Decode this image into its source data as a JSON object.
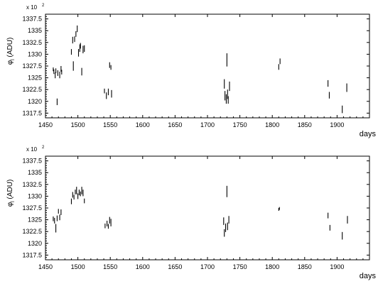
{
  "chart_data": [
    {
      "type": "scatter",
      "title": "",
      "multiplier_label": "x 10",
      "multiplier_exponent": "2",
      "ylabel_symbol": "φ",
      "ylabel_sub": "l",
      "ylabel_unit": " (ADU)",
      "xlabel": "days",
      "xlim": [
        1450,
        1950
      ],
      "ylim": [
        1316.5,
        1338.5
      ],
      "xticks": [
        1450,
        1500,
        1550,
        1600,
        1650,
        1700,
        1750,
        1800,
        1850,
        1900
      ],
      "xtick_labels": [
        "1450",
        "1500",
        "1550",
        "1600",
        "1650",
        "1700",
        "1750",
        "1800",
        "1850",
        "1900"
      ],
      "yticks": [
        1317.5,
        1320,
        1322.5,
        1325,
        1327.5,
        1330,
        1332.5,
        1335,
        1337.5
      ],
      "ytick_labels": [
        "1317.5",
        "1320",
        "1322.5",
        "1325",
        "1327.5",
        "1330",
        "1332.5",
        "1335",
        "1337.5"
      ],
      "grid": false,
      "series": [
        {
          "points": [
            {
              "x": 1462,
              "y": 1326.8,
              "err": 0.4
            },
            {
              "x": 1463,
              "y": 1326.3,
              "err": 0.5
            },
            {
              "x": 1465,
              "y": 1325.5,
              "err": 0.6
            },
            {
              "x": 1466,
              "y": 1326.5,
              "err": 0.5
            },
            {
              "x": 1468,
              "y": 1319.9,
              "err": 0.7
            },
            {
              "x": 1469,
              "y": 1326.0,
              "err": 0.6
            },
            {
              "x": 1472,
              "y": 1325.6,
              "err": 0.7
            },
            {
              "x": 1474,
              "y": 1326.9,
              "err": 0.6
            },
            {
              "x": 1475,
              "y": 1326.2,
              "err": 0.5
            },
            {
              "x": 1490,
              "y": 1330.5,
              "err": 0.6
            },
            {
              "x": 1492,
              "y": 1333.0,
              "err": 0.7
            },
            {
              "x": 1493,
              "y": 1327.5,
              "err": 1.0
            },
            {
              "x": 1495,
              "y": 1333.2,
              "err": 0.6
            },
            {
              "x": 1497,
              "y": 1334.3,
              "err": 0.6
            },
            {
              "x": 1499,
              "y": 1335.4,
              "err": 0.7
            },
            {
              "x": 1501,
              "y": 1330.3,
              "err": 0.8
            },
            {
              "x": 1503,
              "y": 1331.3,
              "err": 0.8
            },
            {
              "x": 1504,
              "y": 1331.8,
              "err": 0.6
            },
            {
              "x": 1506,
              "y": 1326.3,
              "err": 0.8
            },
            {
              "x": 1508,
              "y": 1331.0,
              "err": 0.8
            },
            {
              "x": 1510,
              "y": 1331.2,
              "err": 0.7
            },
            {
              "x": 1541,
              "y": 1322.2,
              "err": 0.5
            },
            {
              "x": 1544,
              "y": 1321.2,
              "err": 0.7
            },
            {
              "x": 1547,
              "y": 1322.0,
              "err": 0.7
            },
            {
              "x": 1549,
              "y": 1327.7,
              "err": 0.6
            },
            {
              "x": 1551,
              "y": 1327.2,
              "err": 0.5
            },
            {
              "x": 1552,
              "y": 1321.6,
              "err": 0.8
            },
            {
              "x": 1726,
              "y": 1323.7,
              "err": 1.0
            },
            {
              "x": 1727,
              "y": 1321.2,
              "err": 1.0
            },
            {
              "x": 1729,
              "y": 1320.5,
              "err": 1.0
            },
            {
              "x": 1730,
              "y": 1328.8,
              "err": 1.4
            },
            {
              "x": 1731,
              "y": 1321.5,
              "err": 1.0
            },
            {
              "x": 1732,
              "y": 1320.3,
              "err": 0.8
            },
            {
              "x": 1734,
              "y": 1323.2,
              "err": 1.0
            },
            {
              "x": 1810,
              "y": 1327.3,
              "err": 0.6
            },
            {
              "x": 1812,
              "y": 1328.5,
              "err": 0.6
            },
            {
              "x": 1886,
              "y": 1323.8,
              "err": 0.7
            },
            {
              "x": 1888,
              "y": 1321.3,
              "err": 0.7
            },
            {
              "x": 1908,
              "y": 1318.3,
              "err": 0.8
            },
            {
              "x": 1915,
              "y": 1322.9,
              "err": 0.9
            }
          ]
        }
      ]
    },
    {
      "type": "scatter",
      "title": "",
      "multiplier_label": "x 10",
      "multiplier_exponent": "2",
      "ylabel_symbol": "φ",
      "ylabel_sub": "l",
      "ylabel_unit": " (ADU)",
      "xlabel": "days",
      "xlim": [
        1450,
        1950
      ],
      "ylim": [
        1316.5,
        1338.5
      ],
      "xticks": [
        1450,
        1500,
        1550,
        1600,
        1650,
        1700,
        1750,
        1800,
        1850,
        1900
      ],
      "xtick_labels": [
        "1450",
        "1500",
        "1550",
        "1600",
        "1650",
        "1700",
        "1750",
        "1800",
        "1850",
        "1900"
      ],
      "yticks": [
        1317.5,
        1320,
        1322.5,
        1325,
        1327.5,
        1330,
        1332.5,
        1335,
        1337.5
      ],
      "ytick_labels": [
        "1317.5",
        "1320",
        "1322.5",
        "1325",
        "1327.5",
        "1330",
        "1332.5",
        "1335",
        "1337.5"
      ],
      "grid": false,
      "series": [
        {
          "points": [
            {
              "x": 1462,
              "y": 1325.2,
              "err": 0.5
            },
            {
              "x": 1464,
              "y": 1324.8,
              "err": 0.6
            },
            {
              "x": 1466,
              "y": 1323.2,
              "err": 0.9
            },
            {
              "x": 1468,
              "y": 1325.3,
              "err": 0.6
            },
            {
              "x": 1470,
              "y": 1326.8,
              "err": 0.5
            },
            {
              "x": 1472,
              "y": 1325.5,
              "err": 0.6
            },
            {
              "x": 1474,
              "y": 1326.6,
              "err": 0.6
            },
            {
              "x": 1490,
              "y": 1328.9,
              "err": 0.6
            },
            {
              "x": 1492,
              "y": 1330.3,
              "err": 0.6
            },
            {
              "x": 1494,
              "y": 1329.8,
              "err": 0.5
            },
            {
              "x": 1496,
              "y": 1330.9,
              "err": 0.5
            },
            {
              "x": 1498,
              "y": 1331.2,
              "err": 0.8
            },
            {
              "x": 1500,
              "y": 1330.0,
              "err": 0.6
            },
            {
              "x": 1502,
              "y": 1330.8,
              "err": 0.6
            },
            {
              "x": 1504,
              "y": 1330.5,
              "err": 0.5
            },
            {
              "x": 1506,
              "y": 1331.2,
              "err": 0.8
            },
            {
              "x": 1508,
              "y": 1330.7,
              "err": 0.7
            },
            {
              "x": 1510,
              "y": 1329.0,
              "err": 0.5
            },
            {
              "x": 1542,
              "y": 1323.7,
              "err": 0.5
            },
            {
              "x": 1545,
              "y": 1324.2,
              "err": 0.6
            },
            {
              "x": 1547,
              "y": 1323.6,
              "err": 0.5
            },
            {
              "x": 1549,
              "y": 1324.9,
              "err": 0.7
            },
            {
              "x": 1551,
              "y": 1324.4,
              "err": 0.8
            },
            {
              "x": 1725,
              "y": 1324.7,
              "err": 0.8
            },
            {
              "x": 1726,
              "y": 1322.2,
              "err": 0.8
            },
            {
              "x": 1728,
              "y": 1323.3,
              "err": 0.9
            },
            {
              "x": 1730,
              "y": 1331.0,
              "err": 1.2
            },
            {
              "x": 1731,
              "y": 1323.6,
              "err": 0.8
            },
            {
              "x": 1733,
              "y": 1325.0,
              "err": 0.8
            },
            {
              "x": 1810,
              "y": 1327.2,
              "err": 0.3
            },
            {
              "x": 1811,
              "y": 1327.4,
              "err": 0.3
            },
            {
              "x": 1886,
              "y": 1325.9,
              "err": 0.6
            },
            {
              "x": 1889,
              "y": 1323.3,
              "err": 0.6
            },
            {
              "x": 1908,
              "y": 1321.6,
              "err": 0.8
            },
            {
              "x": 1916,
              "y": 1325.0,
              "err": 0.8
            }
          ]
        }
      ]
    }
  ]
}
